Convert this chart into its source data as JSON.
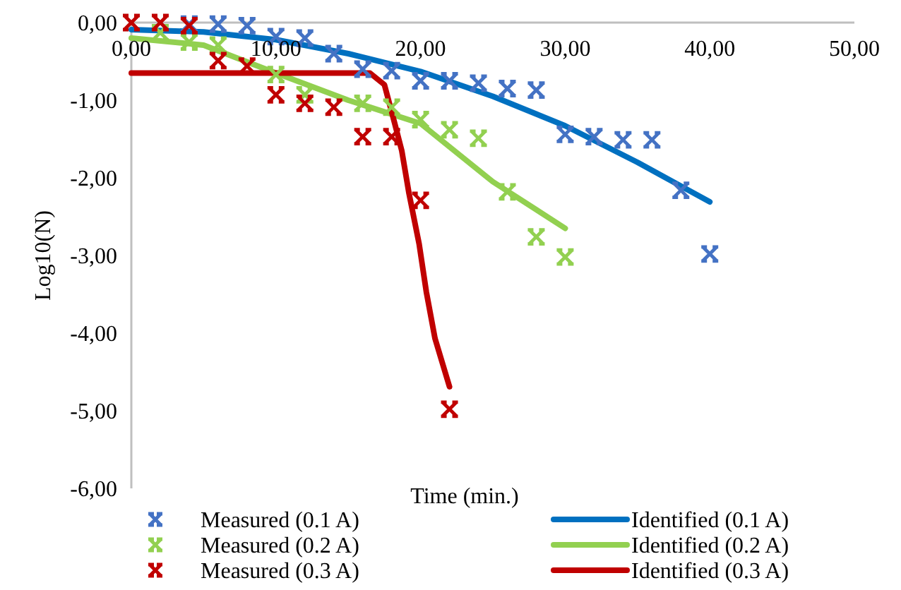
{
  "chart_data": {
    "type": "scatter",
    "xlabel": "Time (min.)",
    "ylabel": "Log10(N)",
    "xlim": [
      0,
      50
    ],
    "ylim": [
      -6,
      0
    ],
    "xticks": [
      {
        "value": 0,
        "label": "0,00"
      },
      {
        "value": 10,
        "label": "10,00"
      },
      {
        "value": 20,
        "label": "20,00"
      },
      {
        "value": 30,
        "label": "30,00"
      },
      {
        "value": 40,
        "label": "40,00"
      },
      {
        "value": 50,
        "label": "50,00"
      }
    ],
    "yticks": [
      {
        "value": 0,
        "label": "0,00"
      },
      {
        "value": -1,
        "label": "-1,00"
      },
      {
        "value": -2,
        "label": "-2,00"
      },
      {
        "value": -3,
        "label": "-3,00"
      },
      {
        "value": -4,
        "label": "-4,00"
      },
      {
        "value": -5,
        "label": "-5,00"
      },
      {
        "value": -6,
        "label": "-6,00"
      }
    ],
    "legend": "bottom",
    "marker": "cross",
    "series": [
      {
        "name": "Measured (0.1 A)",
        "color": "#4472c4",
        "x": [
          4,
          6,
          8,
          10,
          12,
          14,
          16,
          18,
          20,
          22,
          24,
          26,
          28,
          30,
          32,
          34,
          36,
          38,
          40
        ],
        "values": [
          -0.02,
          -0.02,
          -0.04,
          -0.18,
          -0.2,
          -0.4,
          -0.6,
          -0.62,
          -0.75,
          -0.75,
          -0.78,
          -0.85,
          -0.87,
          -1.44,
          -1.47,
          -1.51,
          -1.51,
          -2.16,
          -2.98
        ]
      },
      {
        "name": "Measured (0.2 A)",
        "color": "#92d050",
        "x": [
          2,
          4,
          6,
          10,
          12,
          16,
          18,
          20,
          22,
          24,
          26,
          28,
          30
        ],
        "values": [
          -0.13,
          -0.25,
          -0.29,
          -0.67,
          -0.93,
          -1.04,
          -1.09,
          -1.25,
          -1.38,
          -1.49,
          -2.18,
          -2.76,
          -3.02
        ]
      },
      {
        "name": "Measured (0.3 A)",
        "color": "#c00000",
        "x": [
          0,
          2,
          4,
          6,
          8,
          10,
          12,
          14,
          16,
          18,
          20,
          22
        ],
        "values": [
          0,
          0,
          -0.04,
          -0.49,
          -0.56,
          -0.93,
          -1.04,
          -1.09,
          -1.47,
          -1.47,
          -2.29,
          -4.98
        ]
      },
      {
        "name": "Identified (0.1 A)",
        "type": "line",
        "marker": "none",
        "color": "#0070c0",
        "x": [
          0,
          5,
          10,
          15,
          20,
          25,
          30,
          35,
          40
        ],
        "values": [
          -0.09,
          -0.12,
          -0.22,
          -0.4,
          -0.63,
          -0.95,
          -1.33,
          -1.8,
          -2.31
        ]
      },
      {
        "name": "Identified (0.2 A)",
        "type": "line",
        "marker": "none",
        "color": "#92d050",
        "x": [
          0,
          5,
          10,
          15,
          20,
          25,
          30
        ],
        "values": [
          -0.2,
          -0.29,
          -0.65,
          -1.0,
          -1.3,
          -2.05,
          -2.65
        ]
      },
      {
        "name": "Identified (0.3 A)",
        "type": "line",
        "marker": "none",
        "color": "#c00000",
        "x": [
          0,
          16.5,
          17.5,
          18.2,
          18.7,
          19.2,
          19.9,
          20.4,
          21,
          22
        ],
        "values": [
          -0.65,
          -0.65,
          -0.8,
          -1.29,
          -1.65,
          -2.2,
          -2.85,
          -3.47,
          -4.07,
          -4.69
        ]
      }
    ]
  }
}
